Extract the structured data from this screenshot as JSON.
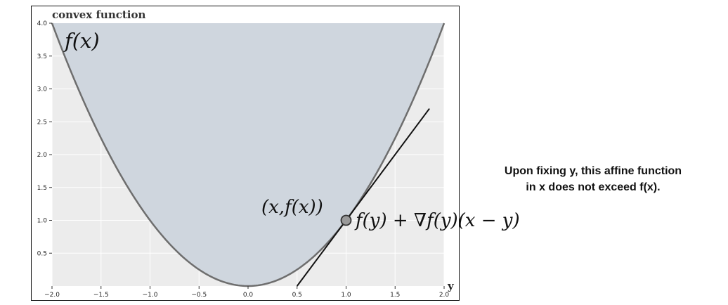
{
  "chart_data": {
    "type": "line",
    "title": "convex function",
    "xlabel": "y",
    "xlim": [
      -2.0,
      2.0
    ],
    "ylim": [
      0.0,
      4.0
    ],
    "x_ticks": [
      "-2.0",
      "-1.5",
      "-1.0",
      "-0.5",
      "0.0",
      "0.5",
      "1.0",
      "1.5",
      "2.0"
    ],
    "y_ticks": [
      "0.5",
      "1.0",
      "1.5",
      "2.0",
      "2.5",
      "3.0",
      "3.5",
      "4.0"
    ],
    "grid": true,
    "series": [
      {
        "name": "f(x)",
        "function": "x^2",
        "fill_above": true,
        "color": "#6e6e6e",
        "fill_color": "#cfd6de"
      },
      {
        "name": "f(y) + ∇f(y)(x − y)",
        "function": "2x - 1",
        "x_range": [
          0.5,
          1.85
        ],
        "color": "#111111"
      }
    ],
    "point": {
      "x": 1.0,
      "y": 1.0,
      "label": "(x,f(x))",
      "color": "#9a9a9a"
    },
    "background": "#ececec"
  },
  "annotations": {
    "curve_label": "f(x)",
    "tangent_label": "f(y) + ∇f(y)(x − y)"
  },
  "side_note": {
    "line1": "Upon fixing y, this affine function",
    "line2": "in x does not exceed f(x)."
  }
}
